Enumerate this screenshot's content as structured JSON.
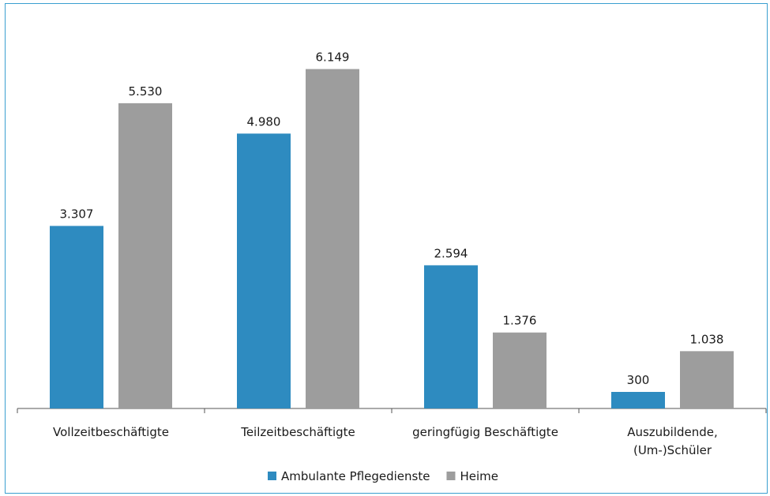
{
  "chart_data": {
    "type": "bar",
    "categories": [
      [
        "Vollzeitbeschäftigte"
      ],
      [
        "Teilzeitbeschäftigte"
      ],
      [
        "geringfügig Beschäftigte"
      ],
      [
        "Auszubildende,",
        "(Um-)Schüler"
      ]
    ],
    "series": [
      {
        "name": "Ambulante Pflegedienste",
        "color": "#2e8bc0",
        "values": [
          3307,
          4980,
          2594,
          300
        ],
        "labels": [
          "3.307",
          "4.980",
          "2.594",
          "300"
        ]
      },
      {
        "name": "Heime",
        "color": "#9d9d9d",
        "values": [
          5530,
          6149,
          1376,
          1038
        ],
        "labels": [
          "5.530",
          "6.149",
          "1.376",
          "1.038"
        ]
      }
    ],
    "title": "",
    "xlabel": "",
    "ylabel": "",
    "ylim": [
      0,
      7000
    ],
    "grid": false,
    "legend_position": "bottom"
  }
}
